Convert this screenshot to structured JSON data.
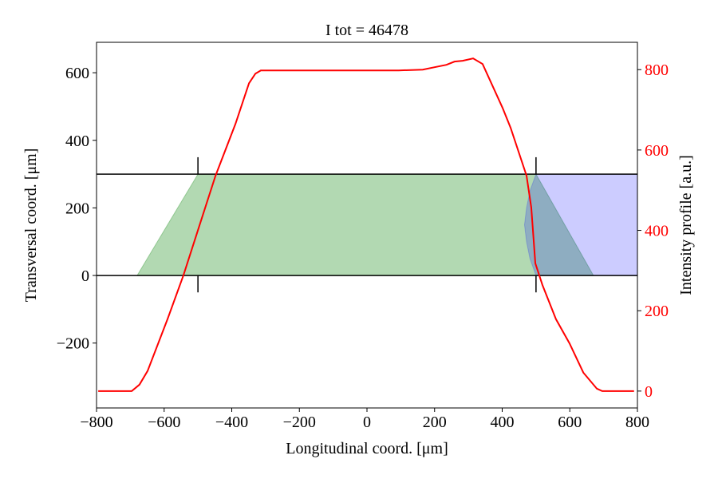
{
  "chart_data": {
    "type": "line",
    "title": "I tot = 46478",
    "xlabel": "Longitudinal coord. [μm]",
    "ylabel": "Transversal coord. [μm]",
    "y2label": "Intensity profile [a.u.]",
    "xlim": [
      -800,
      800
    ],
    "ylim": [
      -392,
      690
    ],
    "y2lim": [
      -42,
      868
    ],
    "xticks": [
      {
        "value": -800,
        "label": "−800"
      },
      {
        "value": -600,
        "label": "−600"
      },
      {
        "value": -400,
        "label": "−400"
      },
      {
        "value": -200,
        "label": "−200"
      },
      0,
      200,
      400,
      600,
      800
    ],
    "yticks": [
      {
        "value": -200,
        "label": "−200"
      },
      0,
      200,
      400,
      600
    ],
    "y2ticks": [
      0,
      200,
      400,
      600,
      800
    ],
    "y2tick_color": "#ff0000",
    "grid": false,
    "regions": [
      {
        "color": "#008000",
        "alpha": 0.3,
        "x": [
          -680,
          -500,
          500,
          670
        ],
        "y": [
          0,
          300,
          300,
          0
        ]
      },
      {
        "color": "#0000ff",
        "alpha": 0.2,
        "x": [
          500,
          482,
          472,
          466,
          472,
          482,
          500,
          800,
          800
        ],
        "y": [
          300,
          250,
          200,
          150,
          100,
          50,
          0,
          0,
          300
        ]
      }
    ],
    "hlines": [
      0,
      300
    ],
    "vsegments": [
      {
        "x": -500,
        "y": [
          300,
          350
        ]
      },
      {
        "x": -500,
        "y": [
          0,
          -50
        ]
      },
      {
        "x": 500,
        "y": [
          300,
          350
        ]
      },
      {
        "x": 500,
        "y": [
          0,
          -50
        ]
      }
    ],
    "series": [
      {
        "color": "#ff0000",
        "axis": "y2",
        "x": [
          -795,
          -696,
          -673,
          -649,
          -590,
          -543,
          -496,
          -448,
          -389,
          -349,
          -330,
          -314,
          94,
          165,
          200,
          235,
          259,
          283,
          314,
          342,
          401,
          425,
          472,
          486,
          498,
          519,
          559,
          599,
          640,
          680,
          696,
          790
        ],
        "values": [
          0,
          0,
          16,
          50,
          179,
          288,
          411,
          536,
          665,
          766,
          790,
          798,
          798,
          800,
          806,
          812,
          820,
          822,
          828,
          814,
          705,
          655,
          536,
          457,
          318,
          264,
          179,
          119,
          46,
          6,
          0,
          0
        ]
      }
    ]
  }
}
